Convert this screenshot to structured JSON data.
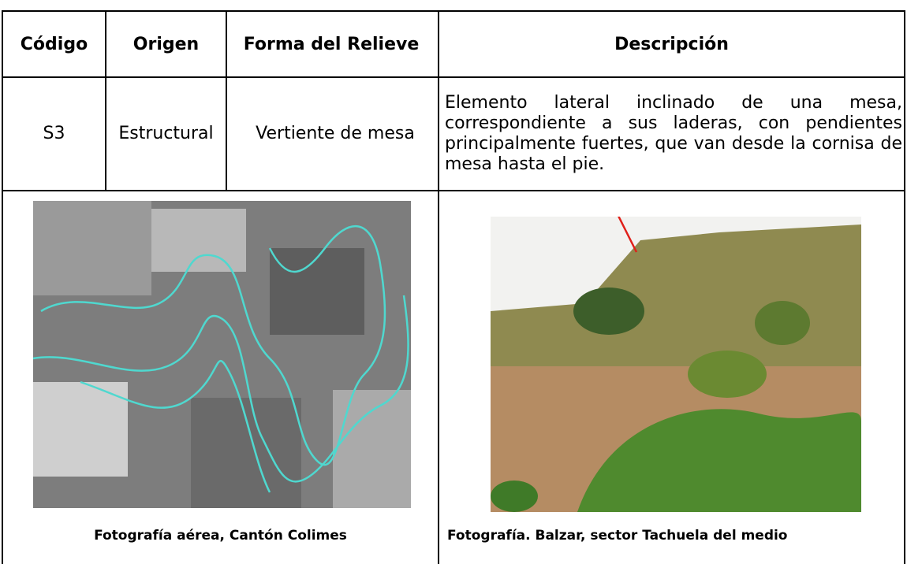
{
  "table": {
    "header": [
      "Código",
      "Origen",
      "Forma del Relieve",
      "Descripción"
    ],
    "row": [
      "S3",
      "Estructural",
      "Vertiente de mesa",
      "Elemento lateral inclinado de una mesa, correspondiente a sus laderas, con pendientes principalmente fuertes, que van desde la cornisa de mesa hasta el pie."
    ],
    "captions": [
      "Fotografía aérea, Cantón Colimes",
      "Fotografía. Balzar, sector Tachuela del medio"
    ]
  }
}
